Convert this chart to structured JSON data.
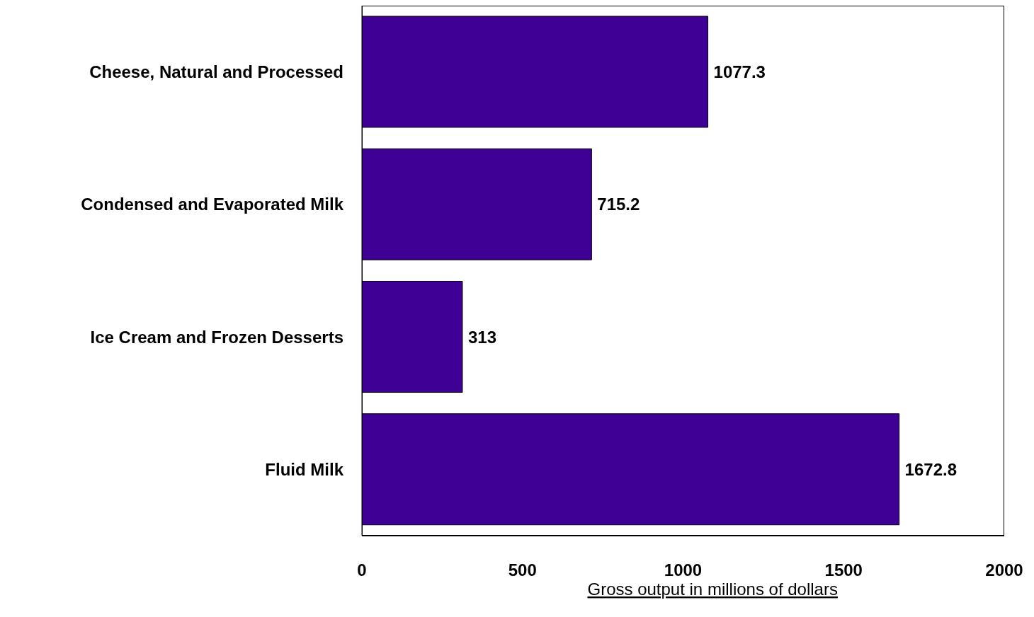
{
  "chart_data": {
    "type": "bar",
    "orientation": "horizontal",
    "categories": [
      "Cheese, Natural and Processed",
      "Condensed and Evaporated Milk",
      "Ice Cream and Frozen Desserts",
      "Fluid Milk"
    ],
    "values": [
      1077.3,
      715.2,
      313,
      1672.8
    ],
    "color": "#3f0096",
    "xlabel": "Gross output in millions of dollars",
    "xlim": [
      0,
      2000
    ],
    "xticks": [
      0,
      500,
      1000,
      1500,
      2000
    ],
    "data_labels": true,
    "grid": false
  }
}
